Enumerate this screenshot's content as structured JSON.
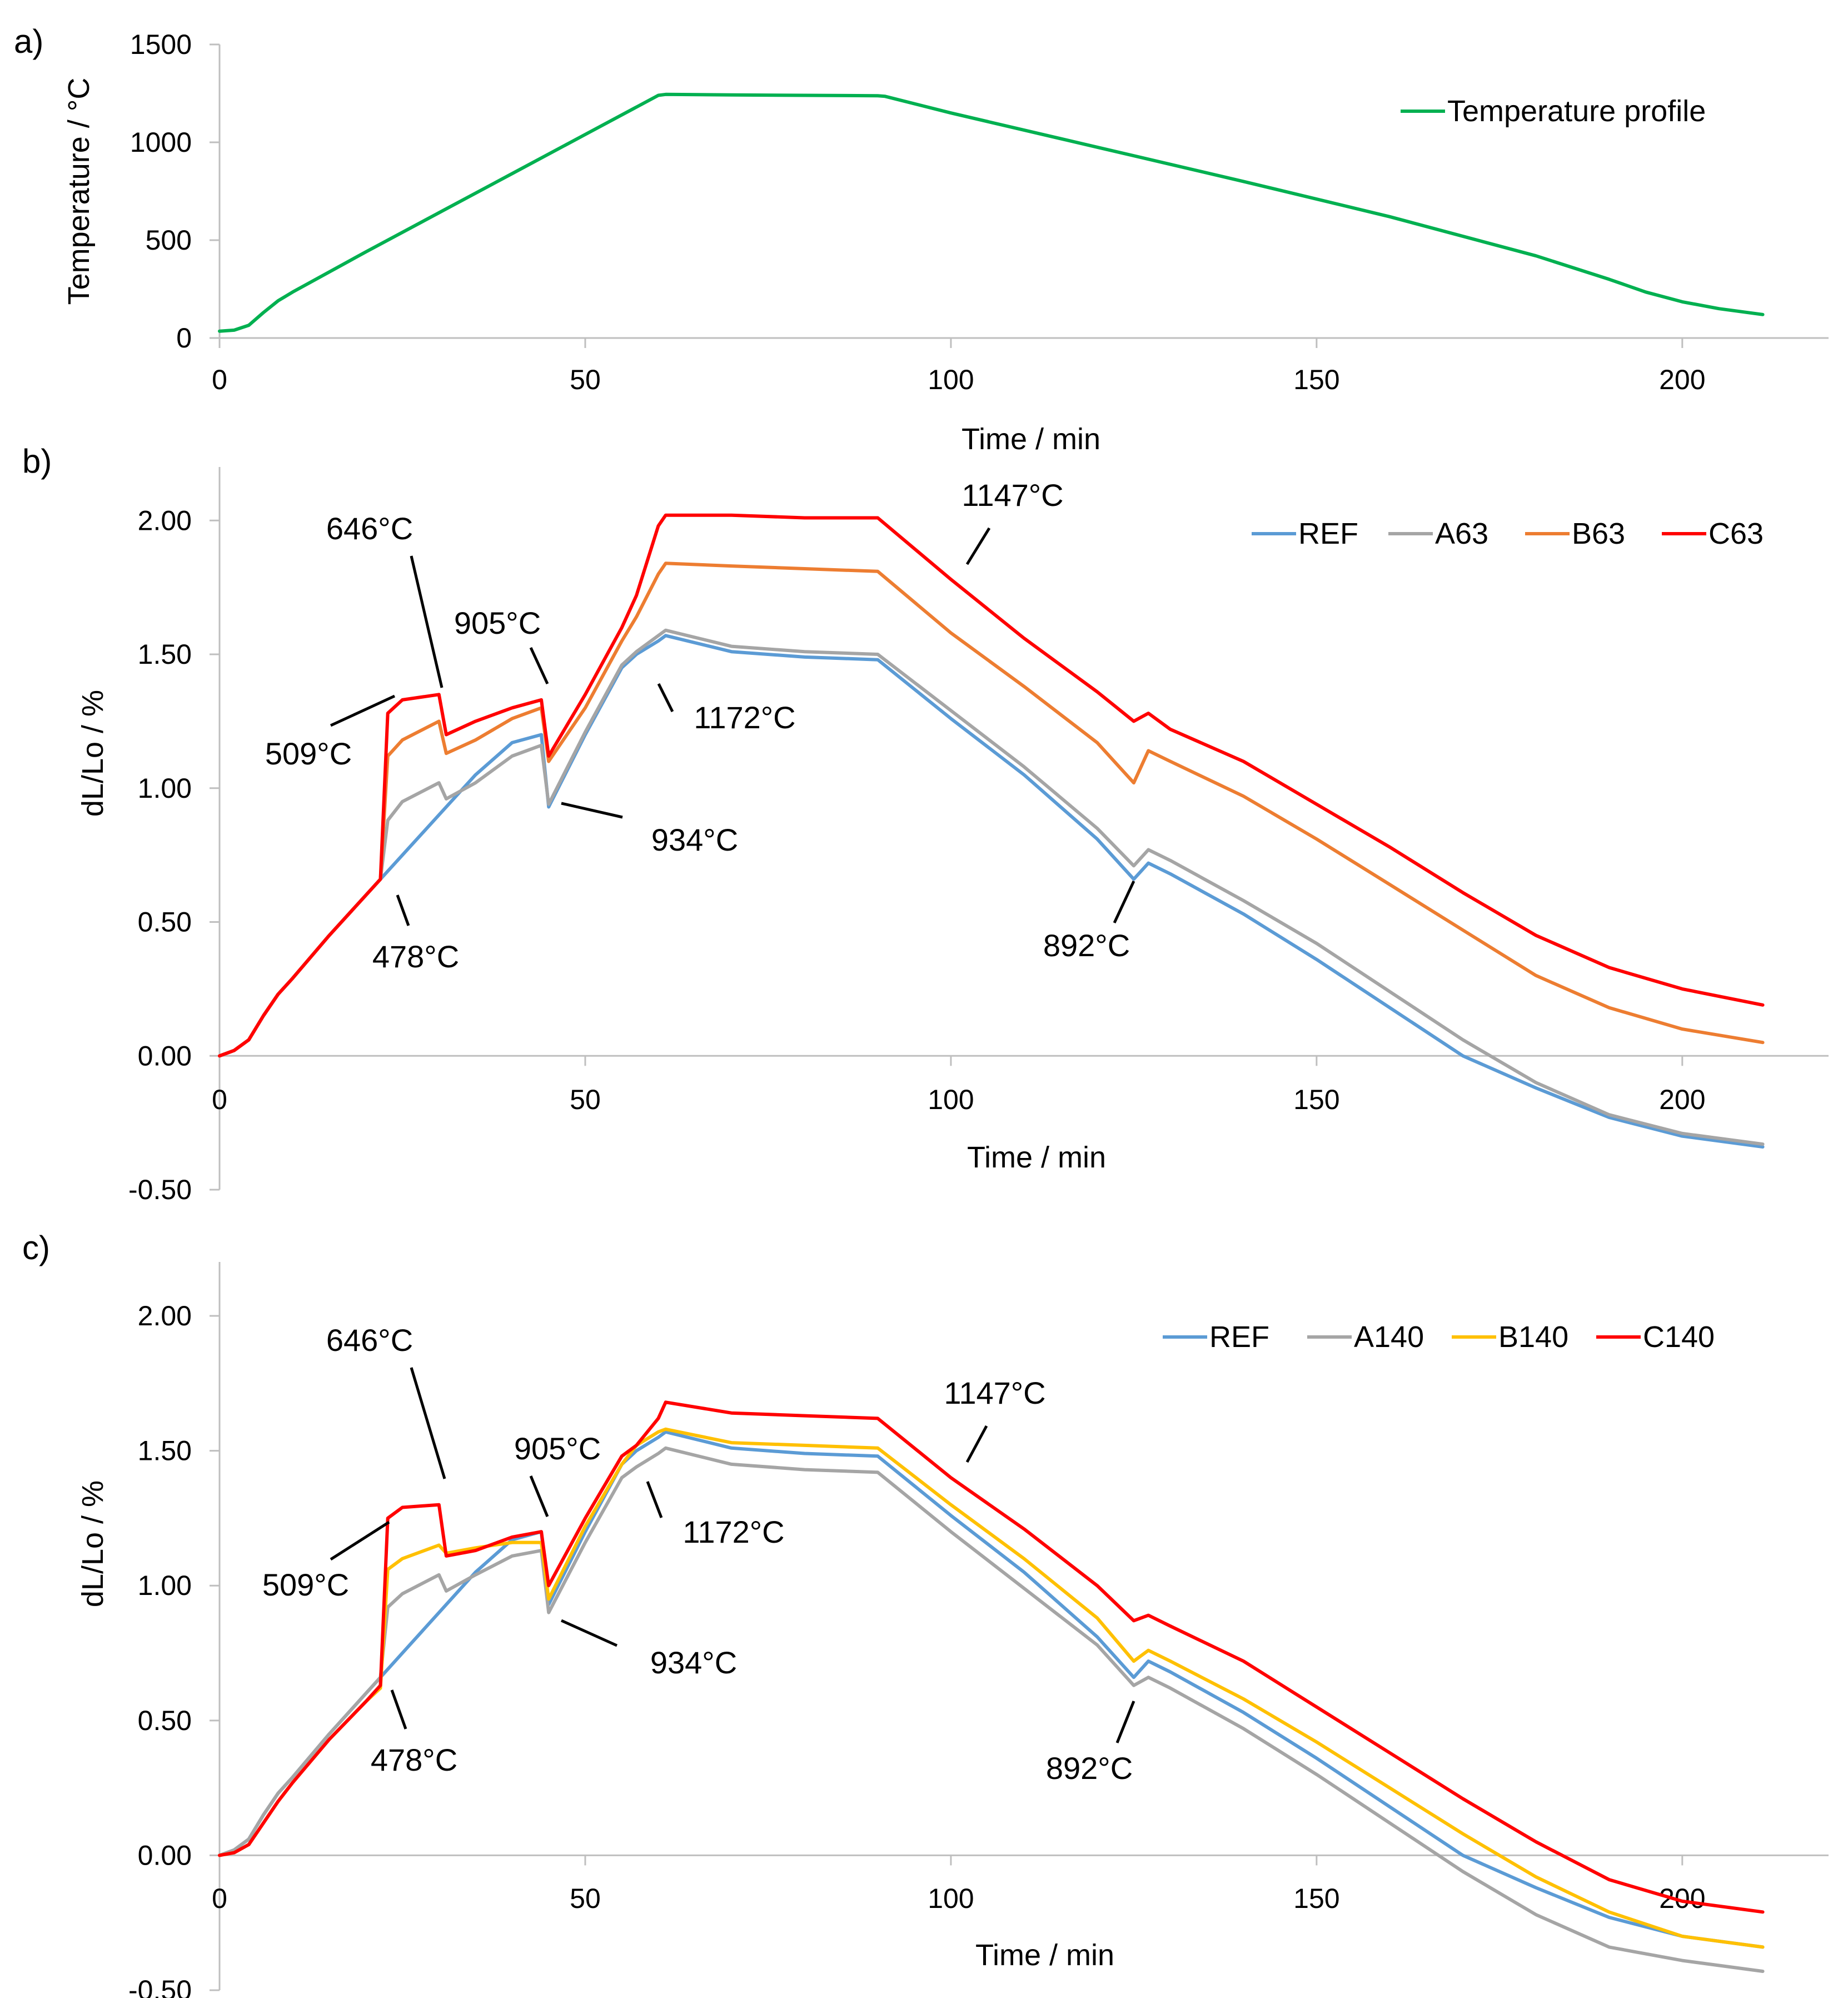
{
  "chart_data": [
    {
      "id": "a",
      "panel_label": "a)",
      "type": "line",
      "xlabel": "Time / min",
      "ylabel": "Temperature / °C",
      "xlim": [
        0,
        220
      ],
      "ylim": [
        0,
        1500
      ],
      "xticks": [
        0,
        50,
        100,
        150,
        200
      ],
      "yticks": [
        0,
        500,
        1000,
        1500
      ],
      "ytick_labels": [
        "0",
        "500",
        "1000",
        "1500"
      ],
      "legend_position": "top-right",
      "series": [
        {
          "name": "Temperature profile",
          "color": "#00b050",
          "x": [
            0,
            2,
            4,
            6,
            8,
            10,
            20,
            30,
            40,
            50,
            60,
            61,
            70,
            80,
            90,
            91,
            100,
            120,
            140,
            160,
            180,
            190,
            195,
            200,
            205,
            211
          ],
          "y": [
            35,
            40,
            65,
            130,
            190,
            235,
            440,
            640,
            840,
            1040,
            1240,
            1245,
            1242,
            1240,
            1238,
            1235,
            1150,
            975,
            800,
            620,
            420,
            300,
            235,
            185,
            150,
            120
          ]
        }
      ]
    },
    {
      "id": "b",
      "panel_label": "b)",
      "type": "line",
      "xlabel": "Time / min",
      "ylabel": "dL/Lo  / %",
      "xlim": [
        0,
        220
      ],
      "ylim": [
        -0.5,
        2.2
      ],
      "xticks": [
        0,
        50,
        100,
        150,
        200
      ],
      "yticks": [
        -0.5,
        0,
        0.5,
        1.0,
        1.5,
        2.0
      ],
      "ytick_labels": [
        "-0.50",
        "0.00",
        "0.50",
        "1.00",
        "1.50",
        "2.00"
      ],
      "legend_position": "top-right",
      "annotations": [
        {
          "text": "646°C",
          "x": 30,
          "y": 1.35
        },
        {
          "text": "509°C",
          "x": 23,
          "y": 1.33
        },
        {
          "text": "905°C",
          "x": 44,
          "y": 1.32
        },
        {
          "text": "1172°C",
          "x": 58,
          "y": 1.5
        },
        {
          "text": "934°C",
          "x": 45,
          "y": 0.95
        },
        {
          "text": "478°C",
          "x": 23,
          "y": 0.58
        },
        {
          "text": "1147°C",
          "x": 101,
          "y": 1.8
        },
        {
          "text": "892°C",
          "x": 124,
          "y": 0.65
        }
      ],
      "series": [
        {
          "name": "REF",
          "color": "#5b9bd5",
          "x": [
            0,
            2,
            4,
            6,
            8,
            10,
            15,
            20,
            22,
            25,
            30,
            35,
            40,
            44,
            45,
            50,
            55,
            57,
            60,
            61,
            70,
            80,
            90,
            100,
            110,
            120,
            125,
            127,
            130,
            140,
            150,
            160,
            170,
            180,
            190,
            200,
            211
          ],
          "y": [
            0,
            0.02,
            0.06,
            0.15,
            0.23,
            0.29,
            0.45,
            0.6,
            0.66,
            0.75,
            0.9,
            1.05,
            1.17,
            1.2,
            0.93,
            1.2,
            1.45,
            1.5,
            1.55,
            1.57,
            1.51,
            1.49,
            1.48,
            1.26,
            1.05,
            0.81,
            0.66,
            0.72,
            0.68,
            0.53,
            0.36,
            0.18,
            0.0,
            -0.12,
            -0.23,
            -0.3,
            -0.34
          ]
        },
        {
          "name": "A63",
          "color": "#a5a5a5",
          "x": [
            0,
            2,
            4,
            6,
            8,
            10,
            15,
            20,
            22,
            23,
            25,
            30,
            31,
            35,
            40,
            44,
            45,
            50,
            55,
            57,
            60,
            61,
            70,
            80,
            90,
            100,
            110,
            120,
            125,
            127,
            130,
            140,
            150,
            160,
            170,
            180,
            190,
            200,
            211
          ],
          "y": [
            0,
            0.02,
            0.06,
            0.15,
            0.23,
            0.29,
            0.45,
            0.6,
            0.66,
            0.88,
            0.95,
            1.02,
            0.96,
            1.02,
            1.12,
            1.16,
            0.94,
            1.21,
            1.46,
            1.51,
            1.57,
            1.59,
            1.53,
            1.51,
            1.5,
            1.29,
            1.08,
            0.85,
            0.71,
            0.77,
            0.73,
            0.58,
            0.42,
            0.24,
            0.06,
            -0.1,
            -0.22,
            -0.29,
            -0.33
          ]
        },
        {
          "name": "B63",
          "color": "#ed7d31",
          "x": [
            0,
            2,
            4,
            6,
            8,
            10,
            15,
            20,
            22,
            23,
            25,
            30,
            31,
            35,
            40,
            44,
            45,
            50,
            55,
            57,
            60,
            61,
            70,
            80,
            90,
            100,
            110,
            120,
            125,
            127,
            130,
            140,
            150,
            160,
            170,
            180,
            190,
            200,
            211
          ],
          "y": [
            0,
            0.02,
            0.06,
            0.15,
            0.23,
            0.29,
            0.45,
            0.6,
            0.66,
            1.12,
            1.18,
            1.25,
            1.13,
            1.18,
            1.26,
            1.3,
            1.1,
            1.3,
            1.55,
            1.64,
            1.8,
            1.84,
            1.83,
            1.82,
            1.81,
            1.58,
            1.38,
            1.17,
            1.02,
            1.14,
            1.1,
            0.97,
            0.81,
            0.64,
            0.47,
            0.3,
            0.18,
            0.1,
            0.05
          ]
        },
        {
          "name": "C63",
          "color": "#ff0000",
          "x": [
            0,
            2,
            4,
            6,
            8,
            10,
            15,
            20,
            22,
            23,
            25,
            30,
            31,
            35,
            40,
            44,
            45,
            50,
            55,
            57,
            60,
            61,
            70,
            80,
            90,
            100,
            110,
            120,
            125,
            127,
            130,
            140,
            150,
            160,
            170,
            180,
            190,
            200,
            211
          ],
          "y": [
            0,
            0.02,
            0.06,
            0.15,
            0.23,
            0.29,
            0.45,
            0.6,
            0.66,
            1.28,
            1.33,
            1.35,
            1.2,
            1.25,
            1.3,
            1.33,
            1.12,
            1.35,
            1.6,
            1.72,
            1.98,
            2.02,
            2.02,
            2.01,
            2.01,
            1.78,
            1.56,
            1.36,
            1.25,
            1.28,
            1.22,
            1.1,
            0.94,
            0.78,
            0.61,
            0.45,
            0.33,
            0.25,
            0.19
          ]
        }
      ]
    },
    {
      "id": "c",
      "panel_label": "c)",
      "type": "line",
      "xlabel": "Time / min",
      "ylabel": "dL/Lo  / %",
      "xlim": [
        0,
        220
      ],
      "ylim": [
        -0.5,
        2.2
      ],
      "xticks": [
        0,
        50,
        100,
        150,
        200
      ],
      "yticks": [
        -0.5,
        0,
        0.5,
        1.0,
        1.5,
        2.0
      ],
      "ytick_labels": [
        "-0.50",
        "0.00",
        "0.50",
        "1.00",
        "1.50",
        "2.00"
      ],
      "legend_position": "top-right",
      "annotations": [
        {
          "text": "646°C",
          "x": 30,
          "y": 1.3
        },
        {
          "text": "509°C",
          "x": 23,
          "y": 1.28
        },
        {
          "text": "905°C",
          "x": 44,
          "y": 1.2
        },
        {
          "text": "1172°C",
          "x": 58,
          "y": 1.45
        },
        {
          "text": "934°C",
          "x": 45,
          "y": 0.9
        },
        {
          "text": "478°C",
          "x": 23,
          "y": 0.58
        },
        {
          "text": "1147°C",
          "x": 101,
          "y": 1.4
        },
        {
          "text": "892°C",
          "x": 124,
          "y": 0.6
        }
      ],
      "series": [
        {
          "name": "REF",
          "color": "#5b9bd5",
          "x": [
            0,
            2,
            4,
            6,
            8,
            10,
            15,
            20,
            22,
            25,
            30,
            35,
            40,
            44,
            45,
            50,
            55,
            57,
            60,
            61,
            70,
            80,
            90,
            100,
            110,
            120,
            125,
            127,
            130,
            140,
            150,
            160,
            170,
            180,
            190,
            200,
            211
          ],
          "y": [
            0,
            0.02,
            0.06,
            0.15,
            0.23,
            0.29,
            0.45,
            0.6,
            0.66,
            0.75,
            0.9,
            1.05,
            1.17,
            1.2,
            0.93,
            1.2,
            1.45,
            1.5,
            1.55,
            1.57,
            1.51,
            1.49,
            1.48,
            1.26,
            1.05,
            0.81,
            0.66,
            0.72,
            0.68,
            0.53,
            0.36,
            0.18,
            0.0,
            -0.12,
            -0.23,
            -0.3,
            -0.34
          ]
        },
        {
          "name": "A140",
          "color": "#a5a5a5",
          "x": [
            0,
            2,
            4,
            6,
            8,
            10,
            15,
            20,
            22,
            23,
            25,
            30,
            31,
            35,
            40,
            44,
            45,
            50,
            55,
            57,
            60,
            61,
            70,
            80,
            90,
            100,
            110,
            120,
            125,
            127,
            130,
            140,
            150,
            160,
            170,
            180,
            190,
            200,
            211
          ],
          "y": [
            0,
            0.02,
            0.06,
            0.15,
            0.23,
            0.29,
            0.45,
            0.6,
            0.66,
            0.92,
            0.97,
            1.04,
            0.98,
            1.04,
            1.11,
            1.13,
            0.9,
            1.16,
            1.4,
            1.44,
            1.49,
            1.51,
            1.45,
            1.43,
            1.42,
            1.2,
            0.99,
            0.78,
            0.63,
            0.66,
            0.62,
            0.47,
            0.3,
            0.12,
            -0.06,
            -0.22,
            -0.34,
            -0.39,
            -0.43
          ]
        },
        {
          "name": "B140",
          "color": "#ffc000",
          "x": [
            0,
            2,
            4,
            6,
            8,
            10,
            15,
            20,
            22,
            23,
            25,
            30,
            31,
            35,
            40,
            44,
            45,
            50,
            55,
            57,
            60,
            61,
            70,
            80,
            90,
            100,
            110,
            120,
            125,
            127,
            130,
            140,
            150,
            160,
            170,
            180,
            190,
            200,
            211
          ],
          "y": [
            0,
            0.01,
            0.04,
            0.12,
            0.2,
            0.27,
            0.43,
            0.57,
            0.62,
            1.06,
            1.1,
            1.15,
            1.12,
            1.14,
            1.16,
            1.16,
            0.95,
            1.22,
            1.45,
            1.52,
            1.57,
            1.58,
            1.53,
            1.52,
            1.51,
            1.3,
            1.1,
            0.88,
            0.72,
            0.76,
            0.72,
            0.58,
            0.42,
            0.25,
            0.08,
            -0.08,
            -0.21,
            -0.3,
            -0.34
          ]
        },
        {
          "name": "C140",
          "color": "#ff0000",
          "x": [
            0,
            2,
            4,
            6,
            8,
            10,
            15,
            20,
            22,
            23,
            25,
            30,
            31,
            35,
            40,
            44,
            45,
            50,
            55,
            57,
            60,
            61,
            70,
            80,
            90,
            100,
            110,
            120,
            125,
            127,
            130,
            140,
            150,
            160,
            170,
            180,
            190,
            200,
            211
          ],
          "y": [
            0,
            0.01,
            0.04,
            0.12,
            0.2,
            0.27,
            0.43,
            0.57,
            0.63,
            1.25,
            1.29,
            1.3,
            1.11,
            1.13,
            1.18,
            1.2,
            1.0,
            1.25,
            1.48,
            1.52,
            1.62,
            1.68,
            1.64,
            1.63,
            1.62,
            1.4,
            1.21,
            1.0,
            0.87,
            0.89,
            0.85,
            0.72,
            0.55,
            0.38,
            0.21,
            0.05,
            -0.09,
            -0.17,
            -0.21
          ]
        }
      ]
    }
  ]
}
